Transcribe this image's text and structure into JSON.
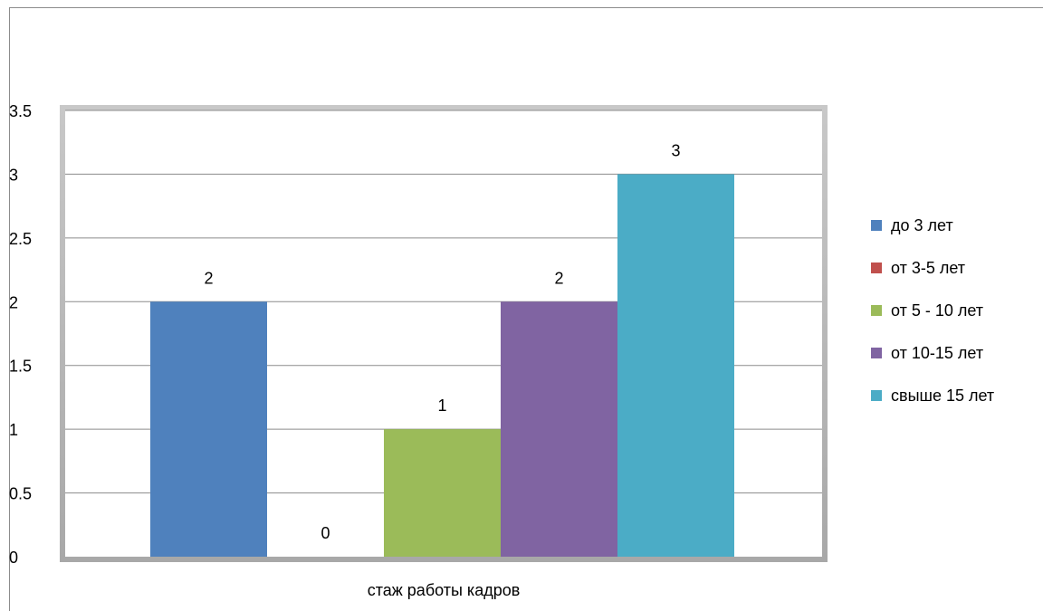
{
  "chart_data": {
    "type": "bar",
    "categories": [
      "стаж работы кадров"
    ],
    "xlabel": "",
    "ylabel": "",
    "ylim": [
      0,
      3.5
    ],
    "yticks": [
      "0",
      "0.5",
      "1",
      "1.5",
      "2",
      "2.5",
      "3",
      "3.5"
    ],
    "grid": true,
    "legend_position": "right",
    "series": [
      {
        "name": "до 3 лет",
        "values": [
          2
        ],
        "label": "2",
        "color": "#4f81bd"
      },
      {
        "name": "от 3-5 лет",
        "values": [
          0
        ],
        "label": "0",
        "color": "#c0504d"
      },
      {
        "name": "от 5 - 10 лет",
        "values": [
          1
        ],
        "label": "1",
        "color": "#9bbb59"
      },
      {
        "name": "от 10-15 лет",
        "values": [
          2
        ],
        "label": "2",
        "color": "#8064a2"
      },
      {
        "name": "свыше 15 лет",
        "values": [
          3
        ],
        "label": "3",
        "color": "#4bacc6"
      }
    ]
  }
}
